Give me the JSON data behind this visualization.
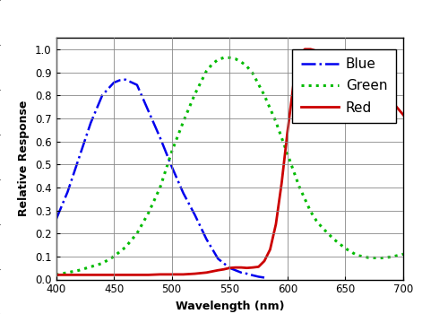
{
  "xlabel": "Wavelength (nm)",
  "ylabel": "Relative Response",
  "xlim": [
    400,
    700
  ],
  "ylim": [
    0.0,
    1.05
  ],
  "yticks": [
    0.0,
    0.1,
    0.2,
    0.3,
    0.4,
    0.5,
    0.6,
    0.7,
    0.8,
    0.9,
    1.0
  ],
  "xticks": [
    400,
    450,
    500,
    550,
    600,
    650,
    700
  ],
  "blue_color": "#0000EE",
  "green_color": "#00BB00",
  "red_color": "#CC0000",
  "background_color": "#FFFFFF",
  "grid_color": "#888888",
  "blue_data": {
    "wavelengths": [
      400,
      410,
      420,
      430,
      440,
      450,
      455,
      460,
      470,
      480,
      490,
      500,
      510,
      520,
      530,
      540,
      550,
      555,
      560,
      565,
      570,
      575,
      580
    ],
    "response": [
      0.26,
      0.38,
      0.53,
      0.68,
      0.8,
      0.855,
      0.865,
      0.868,
      0.845,
      0.73,
      0.615,
      0.49,
      0.375,
      0.28,
      0.175,
      0.09,
      0.05,
      0.04,
      0.03,
      0.025,
      0.018,
      0.012,
      0.008
    ]
  },
  "green_data": {
    "wavelengths": [
      400,
      410,
      420,
      430,
      440,
      450,
      460,
      470,
      480,
      490,
      500,
      510,
      520,
      530,
      535,
      540,
      545,
      550,
      555,
      560,
      565,
      570,
      580,
      590,
      600,
      610,
      620,
      625,
      630,
      635,
      640,
      650,
      660,
      670,
      680,
      690,
      700
    ],
    "response": [
      0.02,
      0.03,
      0.04,
      0.055,
      0.07,
      0.1,
      0.14,
      0.2,
      0.29,
      0.4,
      0.555,
      0.685,
      0.805,
      0.905,
      0.935,
      0.955,
      0.963,
      0.963,
      0.958,
      0.945,
      0.925,
      0.895,
      0.8,
      0.685,
      0.545,
      0.405,
      0.295,
      0.255,
      0.225,
      0.2,
      0.175,
      0.135,
      0.105,
      0.095,
      0.093,
      0.098,
      0.11
    ]
  },
  "red_data": {
    "wavelengths": [
      400,
      420,
      440,
      460,
      480,
      490,
      500,
      510,
      520,
      530,
      540,
      545,
      550,
      555,
      560,
      565,
      570,
      575,
      580,
      585,
      590,
      595,
      600,
      605,
      610,
      615,
      620,
      630,
      640,
      650,
      660,
      670,
      680,
      690,
      700
    ],
    "response": [
      0.02,
      0.02,
      0.02,
      0.02,
      0.02,
      0.022,
      0.022,
      0.022,
      0.025,
      0.03,
      0.04,
      0.044,
      0.05,
      0.052,
      0.052,
      0.05,
      0.052,
      0.055,
      0.08,
      0.13,
      0.24,
      0.42,
      0.64,
      0.84,
      0.97,
      1.0,
      1.0,
      0.985,
      0.965,
      0.92,
      0.885,
      0.855,
      0.82,
      0.775,
      0.715
    ]
  },
  "legend_shadow_color": "#333333",
  "legend_fontsize": 11
}
